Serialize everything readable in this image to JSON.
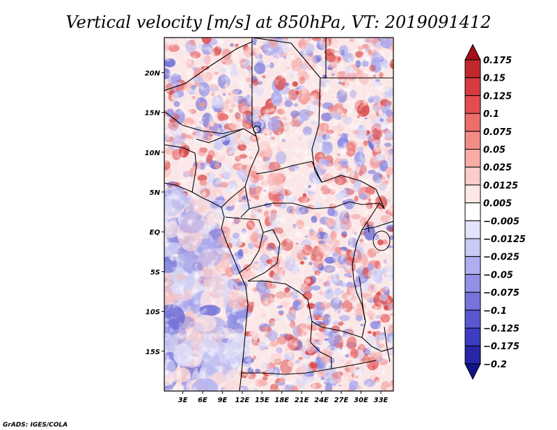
{
  "chart_data": {
    "type": "heatmap",
    "title": "Vertical velocity [m/s] at 850hPa, VT: 2019091412",
    "variable": "Vertical velocity",
    "units": "m/s",
    "level": "850hPa",
    "valid_time": "2019091412",
    "x_ticks": [
      {
        "value": 3,
        "label": "3E"
      },
      {
        "value": 6,
        "label": "6E"
      },
      {
        "value": 9,
        "label": "9E"
      },
      {
        "value": 12,
        "label": "12E"
      },
      {
        "value": 15,
        "label": "15E"
      },
      {
        "value": 18,
        "label": "18E"
      },
      {
        "value": 21,
        "label": "21E"
      },
      {
        "value": 24,
        "label": "24E"
      },
      {
        "value": 27,
        "label": "27E"
      },
      {
        "value": 30,
        "label": "30E"
      },
      {
        "value": 33,
        "label": "33E"
      }
    ],
    "y_ticks": [
      {
        "value": 20,
        "label": "20N"
      },
      {
        "value": 15,
        "label": "15N"
      },
      {
        "value": 10,
        "label": "10N"
      },
      {
        "value": 5,
        "label": "5N"
      },
      {
        "value": 0,
        "label": "EQ"
      },
      {
        "value": -5,
        "label": "5S"
      },
      {
        "value": -10,
        "label": "10S"
      },
      {
        "value": -15,
        "label": "15S"
      }
    ],
    "xlim": [
      0.2,
      34.9
    ],
    "ylim": [
      -20,
      24.4
    ],
    "colorbar": {
      "levels": [
        "0.175",
        "0.15",
        "0.125",
        "0.1",
        "0.075",
        "0.05",
        "0.025",
        "0.0125",
        "0.005",
        "−0.005",
        "−0.0125",
        "−0.025",
        "−0.05",
        "−0.075",
        "−0.1",
        "−0.125",
        "−0.175",
        "−0.2"
      ],
      "colors": [
        "#a50f15",
        "#c0282d",
        "#d63c3f",
        "#e34d4f",
        "#ed6d6a",
        "#f48c86",
        "#f9aca6",
        "#fbcdc8",
        "#fde8e5",
        "#ffffff",
        "#e3e3fb",
        "#cacaf6",
        "#aeaef0",
        "#9191e6",
        "#7474dc",
        "#5858d0",
        "#3c3cc0",
        "#2626a6",
        "#14148a"
      ]
    }
  },
  "credit": "GrADS: IGES/COLA"
}
